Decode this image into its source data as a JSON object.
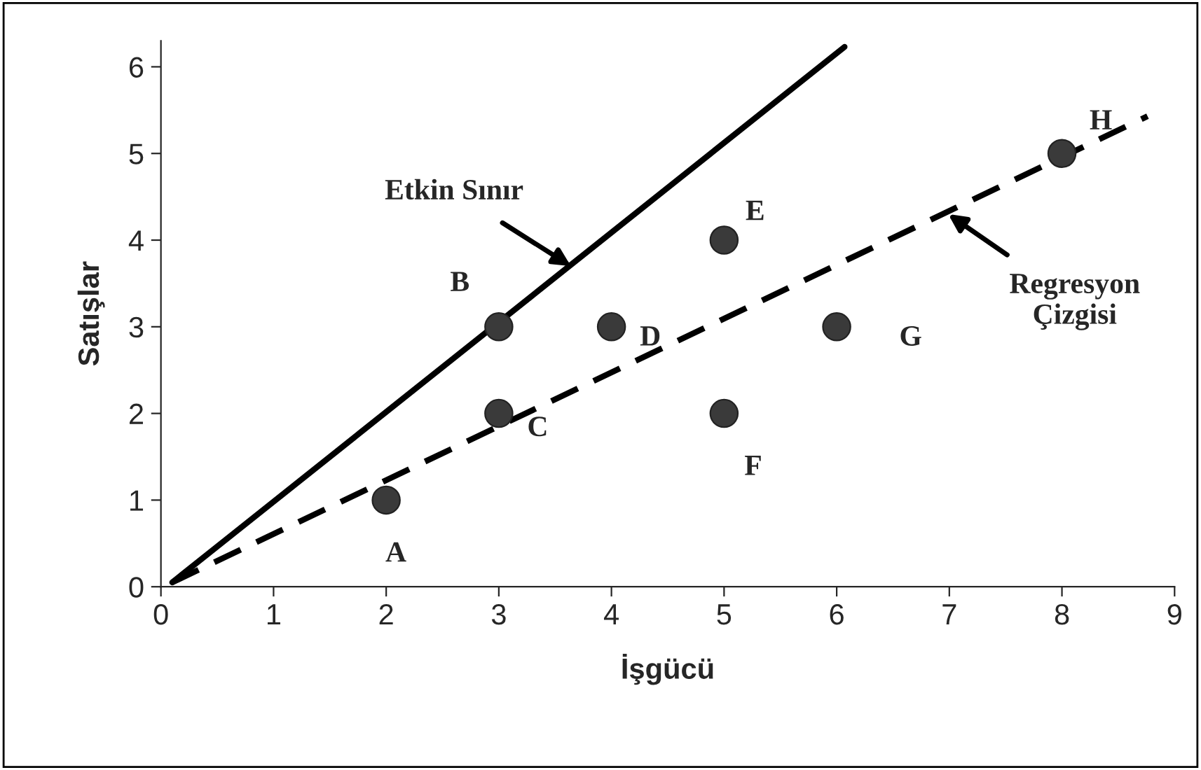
{
  "chart_data": {
    "type": "scatter",
    "xlabel": "İşgücü",
    "ylabel": "Satışlar",
    "xlim": [
      0,
      9
    ],
    "xticks": [
      0,
      1,
      2,
      3,
      4,
      5,
      6,
      7,
      8,
      9
    ],
    "ylim": [
      0,
      6.3
    ],
    "yticks": [
      0,
      1,
      2,
      3,
      4,
      5,
      6
    ],
    "grid": false,
    "legend": false,
    "series": [
      {
        "color": "#3a3a3a",
        "marker": "circle",
        "x": [
          2,
          3,
          3,
          4,
          5,
          5,
          6,
          8
        ],
        "values": [
          1,
          3,
          2,
          3,
          4,
          2,
          3,
          5
        ]
      },
      {
        "type": "line",
        "color": "#000000",
        "line_style": "solid",
        "marker": "none",
        "x": [
          0.1,
          6.07
        ],
        "values": [
          0.05,
          6.23
        ]
      },
      {
        "type": "line",
        "color": "#000000",
        "line_style": "dashed",
        "marker": "none",
        "x": [
          0.1,
          8.76
        ],
        "values": [
          0.05,
          5.43
        ]
      }
    ],
    "annotations": [
      {
        "text": "A",
        "x": 2,
        "y": 1
      },
      {
        "text": "B",
        "x": 3,
        "y": 3
      },
      {
        "text": "C",
        "x": 3,
        "y": 2
      },
      {
        "text": "D",
        "x": 4,
        "y": 3
      },
      {
        "text": "E",
        "x": 5,
        "y": 4
      },
      {
        "text": "F",
        "x": 5,
        "y": 2
      },
      {
        "text": "G",
        "x": 6,
        "y": 3
      },
      {
        "text": "H",
        "x": 8,
        "y": 5
      },
      {
        "text": "Etkin Sınır",
        "x": 3.64,
        "y": 3.7
      },
      {
        "text": "Regresyon\nÇizgisi",
        "x": 6.99,
        "y": 4.3
      }
    ]
  }
}
